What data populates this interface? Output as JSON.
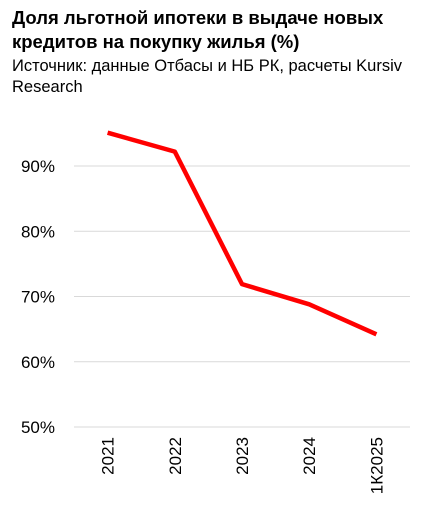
{
  "chart_data": {
    "type": "line",
    "title": "Доля льготной ипотеки в выдаче новых кредитов на покупку жилья (%)",
    "subtitle": "Источник: данные Отбасы и НБ РК, расчеты Kursiv Research",
    "categories": [
      "2021",
      "2022",
      "2023",
      "2024",
      "1К2025"
    ],
    "series": [
      {
        "values": [
          95.1,
          92.2,
          71.9,
          68.8,
          64.2
        ],
        "color": "#ff0000"
      }
    ],
    "ylim": [
      50,
      100
    ],
    "yticks": [
      50,
      60,
      70,
      80,
      90
    ],
    "ytick_labels": [
      "50%",
      "60%",
      "70%",
      "80%",
      "90%"
    ],
    "grid": true,
    "grid_color": "#d9d9d9",
    "legend": "none"
  }
}
